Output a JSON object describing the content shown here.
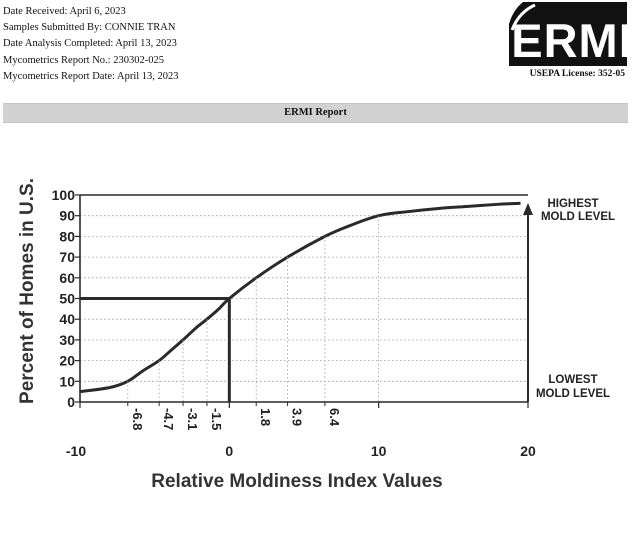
{
  "header": {
    "date_received": "Date Received: April 6, 2023",
    "submitted_by": "Samples Submitted By: CONNIE TRAN",
    "analysis_completed": "Date Analysis Completed: April 13, 2023",
    "report_no": "Mycometrics Report No.: 230302-025",
    "report_date": "Mycometrics Report Date: April 13, 2023"
  },
  "logo": {
    "text": "ERMI",
    "color": "#111111"
  },
  "license": "USEPA License: 352-05",
  "banner": {
    "title": "ERMI Report",
    "color": "#d2d2d2"
  },
  "chart_data": {
    "type": "line",
    "xlabel": "Relative Moldiness Index Values",
    "ylabel": "Percent of Homes in U.S.",
    "xlim": [
      -10,
      20
    ],
    "ylim": [
      0,
      100
    ],
    "x_ticks": [
      -10,
      0,
      10,
      20
    ],
    "x_tick_labels": [
      "-10",
      "0",
      "10",
      "20"
    ],
    "y_ticks": [
      0,
      10,
      20,
      30,
      40,
      50,
      60,
      70,
      80,
      90,
      100
    ],
    "y_tick_labels": [
      "0",
      "10",
      "20",
      "30",
      "40",
      "50",
      "60",
      "70",
      "80",
      "90",
      "100"
    ],
    "quartile_marks": [
      -6.8,
      -4.7,
      -3.1,
      -1.5,
      1.8,
      3.9,
      6.4
    ],
    "quartile_labels": [
      "-6.8",
      "-4.7",
      "-3.1",
      "-1.5",
      "1.8",
      "3.9",
      "6.4"
    ],
    "marker": {
      "x": 0,
      "y": 50
    },
    "series": [
      {
        "x": [
          -10,
          -8,
          -6.8,
          -5.8,
          -4.7,
          -3.9,
          -3.1,
          -2.2,
          -1.5,
          -0.7,
          0,
          1.8,
          3.9,
          6.4,
          8,
          10,
          12,
          14,
          16,
          18,
          19.5
        ],
        "values": [
          5,
          7,
          10,
          15,
          20,
          25,
          30,
          36,
          40,
          45,
          50,
          60,
          70,
          80,
          85,
          90,
          92,
          93.5,
          94.5,
          95.5,
          96
        ]
      }
    ],
    "annotations": {
      "high_line1": "HIGHEST",
      "high_line2": "MOLD LEVEL",
      "low_line1": "LOWEST",
      "low_line2": "MOLD LEVEL"
    },
    "grid": true,
    "line_color": "#2a2a2a"
  }
}
